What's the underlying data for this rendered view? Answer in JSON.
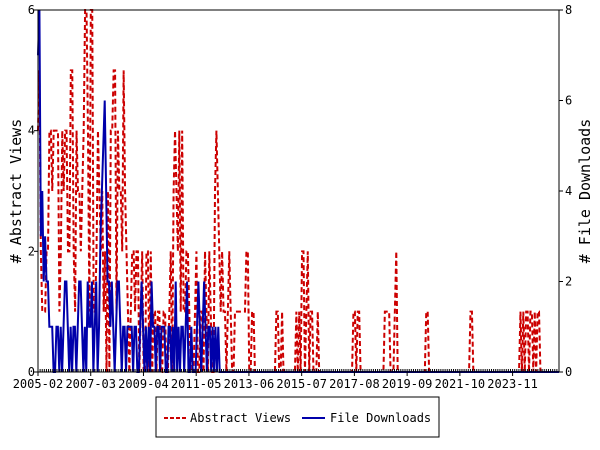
{
  "chart_data": {
    "type": "line",
    "x_tick_labels": [
      "2005-02",
      "2007-03",
      "2009-04",
      "2011-05",
      "2013-06",
      "2015-07",
      "2017-08",
      "2019-09",
      "2021-10",
      "2023-11"
    ],
    "x_range_months": [
      "2005-02",
      "2025-09"
    ],
    "left_axis": {
      "label": "# Abstract Views",
      "ylim": [
        0,
        6
      ],
      "ticks": [
        "0",
        "2",
        "4",
        "6"
      ]
    },
    "right_axis": {
      "label": "# File Downloads",
      "ylim": [
        0,
        8
      ],
      "ticks": [
        "0",
        "2",
        "4",
        "6",
        "8"
      ]
    },
    "legend_position": "bottom",
    "series": [
      {
        "name": "Abstract Views",
        "axis": "left",
        "color": "#cc0000",
        "style": "dashed",
        "values": [
          4,
          5,
          2,
          1,
          1,
          1,
          2,
          2,
          4,
          4,
          3,
          4,
          4,
          4,
          4,
          1,
          2,
          4,
          3,
          4,
          4,
          2,
          2,
          5,
          5,
          2,
          1,
          4,
          3,
          3,
          2,
          3,
          4,
          6,
          6,
          4,
          1,
          6,
          6,
          1,
          1,
          2,
          4,
          3,
          2,
          3,
          1,
          2,
          0,
          3,
          0,
          4,
          4,
          5,
          5,
          1,
          4,
          3,
          3,
          2,
          5,
          3,
          2,
          1,
          0,
          1,
          2,
          2,
          1,
          2,
          2,
          0,
          1,
          2,
          0,
          0,
          2,
          2,
          0,
          2,
          0,
          1,
          1,
          0,
          1,
          1,
          0,
          0,
          1,
          1,
          0,
          0,
          1,
          2,
          0,
          3,
          4,
          3,
          2,
          4,
          1,
          4,
          1,
          1,
          2,
          2,
          1,
          0,
          0,
          0,
          1,
          2,
          0,
          0,
          1,
          1,
          0,
          2,
          1,
          0,
          2,
          1,
          0,
          0,
          3,
          4,
          3,
          2,
          1,
          2,
          1,
          1,
          0,
          1,
          2,
          1,
          0,
          0,
          1,
          1,
          1,
          1,
          1,
          1,
          1,
          1,
          2,
          2,
          0,
          0,
          1,
          1,
          0,
          0,
          0,
          0,
          0,
          0,
          0,
          0,
          0,
          0,
          0,
          0,
          0,
          0,
          0,
          1,
          1,
          0,
          0,
          1,
          0,
          0,
          0,
          0,
          0,
          0,
          0,
          0,
          0,
          1,
          0,
          1,
          0,
          2,
          2,
          0,
          1,
          2,
          0,
          1,
          1,
          0,
          0,
          0,
          1,
          0,
          0,
          0,
          0,
          0,
          0,
          0,
          0,
          0,
          0,
          0,
          0,
          0,
          0,
          0,
          0,
          0,
          0,
          0,
          0,
          0,
          0,
          0,
          0,
          1,
          1,
          0,
          1,
          1,
          0,
          0,
          0,
          0,
          0,
          0,
          0,
          0,
          0,
          0,
          0,
          0,
          0,
          0,
          0,
          0,
          0,
          1,
          1,
          1,
          1,
          0,
          0,
          0,
          1,
          2,
          0,
          0,
          0,
          0,
          0,
          0,
          0,
          0,
          0,
          0,
          0,
          0,
          0,
          0,
          0,
          0,
          0,
          0,
          0,
          0,
          1,
          1,
          0,
          0,
          0,
          0,
          0,
          0,
          0,
          0,
          0,
          0,
          0,
          0,
          0,
          0,
          0,
          0,
          0,
          0,
          0,
          0,
          0,
          0,
          0,
          0,
          0,
          0,
          0,
          0,
          0,
          1,
          1,
          0,
          0,
          0,
          0,
          0,
          0,
          0,
          0,
          0,
          0,
          0,
          0,
          0,
          0,
          0,
          0,
          0,
          0,
          0,
          0,
          0,
          0,
          0,
          0,
          0,
          0,
          0,
          0,
          0,
          0,
          0,
          0,
          0,
          1,
          0,
          1,
          0,
          1,
          1,
          0,
          1,
          1,
          0,
          1,
          0,
          1,
          1,
          0,
          0,
          0,
          0,
          0,
          0,
          0,
          0,
          0,
          0,
          0,
          0,
          0,
          0
        ]
      },
      {
        "name": "File Downloads",
        "axis": "right",
        "color": "#0000aa",
        "style": "solid",
        "values": [
          7,
          8,
          3,
          4,
          2,
          3,
          2,
          2,
          1,
          1,
          1,
          0,
          0,
          1,
          1,
          0,
          1,
          0,
          1,
          2,
          2,
          1,
          0,
          1,
          0,
          1,
          1,
          0,
          1,
          2,
          2,
          1,
          0,
          1,
          0,
          2,
          1,
          1,
          2,
          0,
          1,
          2,
          0,
          1,
          3,
          4,
          5,
          6,
          4,
          2,
          2,
          1,
          2,
          1,
          0,
          1,
          2,
          2,
          1,
          0,
          1,
          1,
          0,
          1,
          1,
          1,
          1,
          0,
          1,
          1,
          0,
          0,
          1,
          2,
          1,
          0,
          1,
          0,
          1,
          0,
          2,
          1,
          1,
          0,
          1,
          1,
          0,
          1,
          1,
          1,
          0,
          0,
          1,
          1,
          0,
          1,
          0,
          2,
          0,
          1,
          0,
          1,
          1,
          0,
          1,
          2,
          0,
          0,
          1,
          0,
          0,
          0,
          1,
          2,
          1,
          0,
          1,
          2,
          1,
          0,
          1,
          1,
          0,
          1,
          0,
          1,
          0,
          1,
          0,
          0,
          0,
          0,
          0,
          0,
          0,
          0,
          0,
          0,
          0,
          0,
          0,
          0,
          0,
          0,
          0,
          0,
          0,
          0,
          0,
          0,
          0,
          0,
          0,
          0,
          0,
          0,
          0,
          0,
          0,
          0,
          0,
          0,
          0,
          0,
          0,
          0,
          0,
          0,
          0,
          0,
          0,
          0,
          0,
          0,
          0,
          0,
          0,
          0,
          0,
          0,
          0,
          0,
          0,
          0,
          0,
          0,
          0,
          0,
          0,
          0,
          0,
          0,
          0,
          0,
          0,
          0,
          0,
          0,
          0,
          0,
          0,
          0,
          0,
          0,
          0,
          0,
          0,
          0,
          0,
          0,
          0,
          0,
          0,
          0,
          0,
          0,
          0,
          0,
          0,
          0,
          0,
          0,
          0,
          0,
          0,
          0,
          0,
          0,
          0,
          0,
          0,
          0,
          0,
          0,
          0,
          0,
          0,
          0,
          0,
          0,
          0,
          0,
          0,
          0,
          0,
          0,
          0,
          0,
          0,
          0,
          0,
          0,
          0,
          0,
          0,
          0,
          0,
          0,
          0,
          0,
          0,
          0,
          0,
          0,
          0,
          0,
          0,
          0,
          0,
          0,
          0,
          0,
          0,
          0,
          0,
          0,
          0,
          0,
          0,
          0,
          0,
          0,
          0,
          0,
          0,
          0,
          0,
          0,
          0,
          0,
          0,
          0,
          0,
          0,
          0,
          0,
          0,
          0,
          0,
          0,
          0,
          0,
          0,
          0,
          0,
          0,
          0,
          0,
          0,
          0,
          0,
          0,
          0,
          0,
          0,
          0,
          0,
          0,
          0,
          0,
          0,
          0,
          0,
          0,
          0,
          0,
          0,
          0,
          0,
          0,
          0,
          0,
          0,
          0,
          0,
          0,
          0,
          0,
          0,
          0,
          0,
          0,
          0,
          0,
          0,
          0,
          0,
          0,
          0,
          0,
          0,
          0,
          0,
          0,
          0,
          0,
          0,
          0,
          0,
          0,
          0,
          0,
          0,
          0,
          0,
          0,
          0,
          0
        ]
      }
    ]
  }
}
